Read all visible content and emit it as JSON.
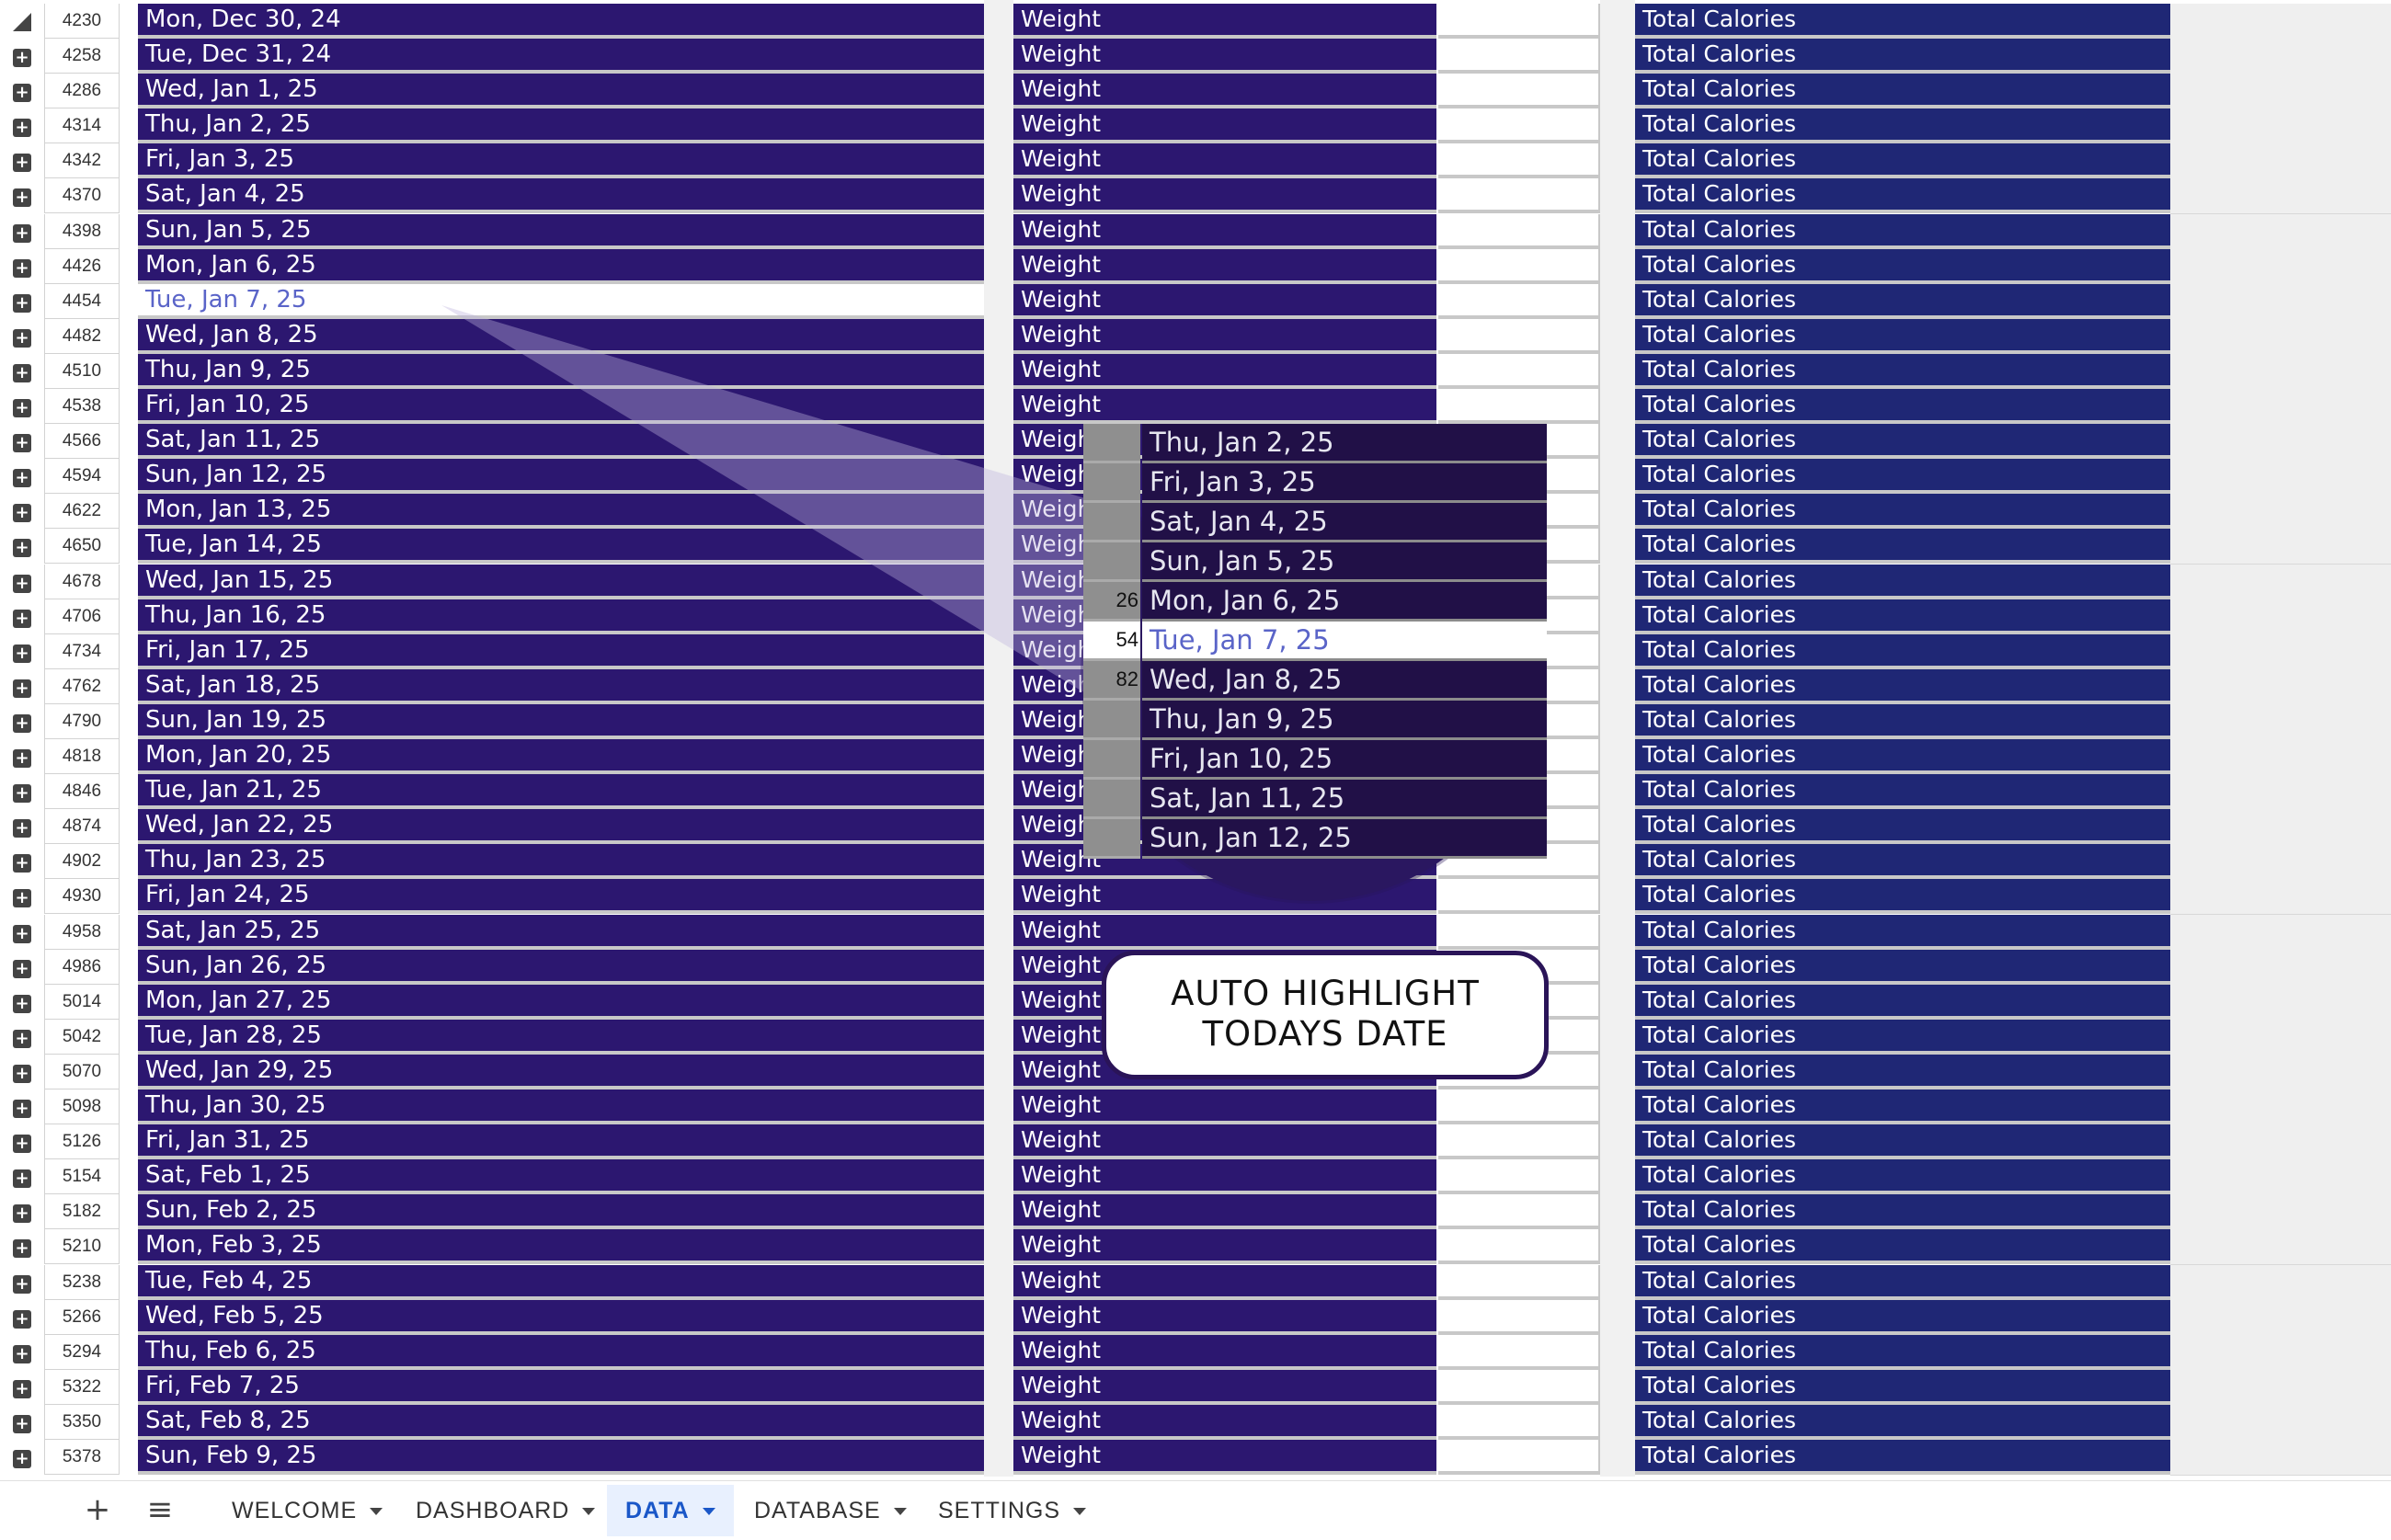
{
  "header_row": {
    "num": "4230",
    "date": "Mon, Dec 30, 24"
  },
  "rows": [
    {
      "num": "4258",
      "date": "Tue, Dec 31, 24"
    },
    {
      "num": "4286",
      "date": "Wed, Jan 1, 25"
    },
    {
      "num": "4314",
      "date": "Thu, Jan 2, 25"
    },
    {
      "num": "4342",
      "date": "Fri, Jan 3, 25"
    },
    {
      "num": "4370",
      "date": "Sat, Jan 4, 25"
    },
    {
      "num": "4398",
      "date": "Sun, Jan 5, 25"
    },
    {
      "num": "4426",
      "date": "Mon, Jan 6, 25"
    },
    {
      "num": "4454",
      "date": "Tue, Jan 7, 25",
      "highlight": true
    },
    {
      "num": "4482",
      "date": "Wed, Jan 8, 25"
    },
    {
      "num": "4510",
      "date": "Thu, Jan 9, 25"
    },
    {
      "num": "4538",
      "date": "Fri, Jan 10, 25"
    },
    {
      "num": "4566",
      "date": "Sat, Jan 11, 25"
    },
    {
      "num": "4594",
      "date": "Sun, Jan 12, 25"
    },
    {
      "num": "4622",
      "date": "Mon, Jan 13, 25"
    },
    {
      "num": "4650",
      "date": "Tue, Jan 14, 25"
    },
    {
      "num": "4678",
      "date": "Wed, Jan 15, 25"
    },
    {
      "num": "4706",
      "date": "Thu, Jan 16, 25"
    },
    {
      "num": "4734",
      "date": "Fri, Jan 17, 25"
    },
    {
      "num": "4762",
      "date": "Sat, Jan 18, 25"
    },
    {
      "num": "4790",
      "date": "Sun, Jan 19, 25"
    },
    {
      "num": "4818",
      "date": "Mon, Jan 20, 25"
    },
    {
      "num": "4846",
      "date": "Tue, Jan 21, 25"
    },
    {
      "num": "4874",
      "date": "Wed, Jan 22, 25"
    },
    {
      "num": "4902",
      "date": "Thu, Jan 23, 25"
    },
    {
      "num": "4930",
      "date": "Fri, Jan 24, 25"
    },
    {
      "num": "4958",
      "date": "Sat, Jan 25, 25"
    },
    {
      "num": "4986",
      "date": "Sun, Jan 26, 25"
    },
    {
      "num": "5014",
      "date": "Mon, Jan 27, 25"
    },
    {
      "num": "5042",
      "date": "Tue, Jan 28, 25"
    },
    {
      "num": "5070",
      "date": "Wed, Jan 29, 25"
    },
    {
      "num": "5098",
      "date": "Thu, Jan 30, 25"
    },
    {
      "num": "5126",
      "date": "Fri, Jan 31, 25"
    },
    {
      "num": "5154",
      "date": "Sat, Feb 1, 25"
    },
    {
      "num": "5182",
      "date": "Sun, Feb 2, 25"
    },
    {
      "num": "5210",
      "date": "Mon, Feb 3, 25"
    },
    {
      "num": "5238",
      "date": "Tue, Feb 4, 25"
    },
    {
      "num": "5266",
      "date": "Wed, Feb 5, 25"
    },
    {
      "num": "5294",
      "date": "Thu, Feb 6, 25"
    },
    {
      "num": "5322",
      "date": "Fri, Feb 7, 25"
    },
    {
      "num": "5350",
      "date": "Sat, Feb 8, 25"
    },
    {
      "num": "5378",
      "date": "Sun, Feb 9, 25"
    }
  ],
  "weight_label": "Weight",
  "calories_label": "Total Calories",
  "magnifier": {
    "rows": [
      {
        "num": "",
        "date": "Thu, Jan 2, 25"
      },
      {
        "num": "",
        "date": "Fri, Jan 3, 25"
      },
      {
        "num": "",
        "date": "Sat, Jan 4, 25"
      },
      {
        "num": "",
        "date": "Sun, Jan 5, 25"
      },
      {
        "num": "26",
        "date": "Mon, Jan 6, 25"
      },
      {
        "num": "54",
        "date": "Tue, Jan 7, 25",
        "highlight": true
      },
      {
        "num": "82",
        "date": "Wed, Jan 8, 25"
      },
      {
        "num": "",
        "date": "Thu, Jan 9, 25"
      },
      {
        "num": "",
        "date": "Fri, Jan 10, 25"
      },
      {
        "num": "",
        "date": "Sat, Jan 11, 25"
      },
      {
        "num": "",
        "date": "Sun, Jan 12, 25"
      }
    ]
  },
  "callout": {
    "line1": "AUTO HIGHLIGHT",
    "line2": "TODAYS DATE"
  },
  "tabbar": {
    "add_icon": "+",
    "menu_icon": "≡",
    "tabs": [
      {
        "label": "WELCOME"
      },
      {
        "label": "DASHBOARD"
      },
      {
        "label": "DATA",
        "active": true
      },
      {
        "label": "DATABASE"
      },
      {
        "label": "SETTINGS"
      }
    ]
  },
  "colors": {
    "date_bg": "#2c1770",
    "calories_bg": "#1f2775",
    "highlight_text": "#5a64c8",
    "active_tab": "#1a57c8"
  }
}
